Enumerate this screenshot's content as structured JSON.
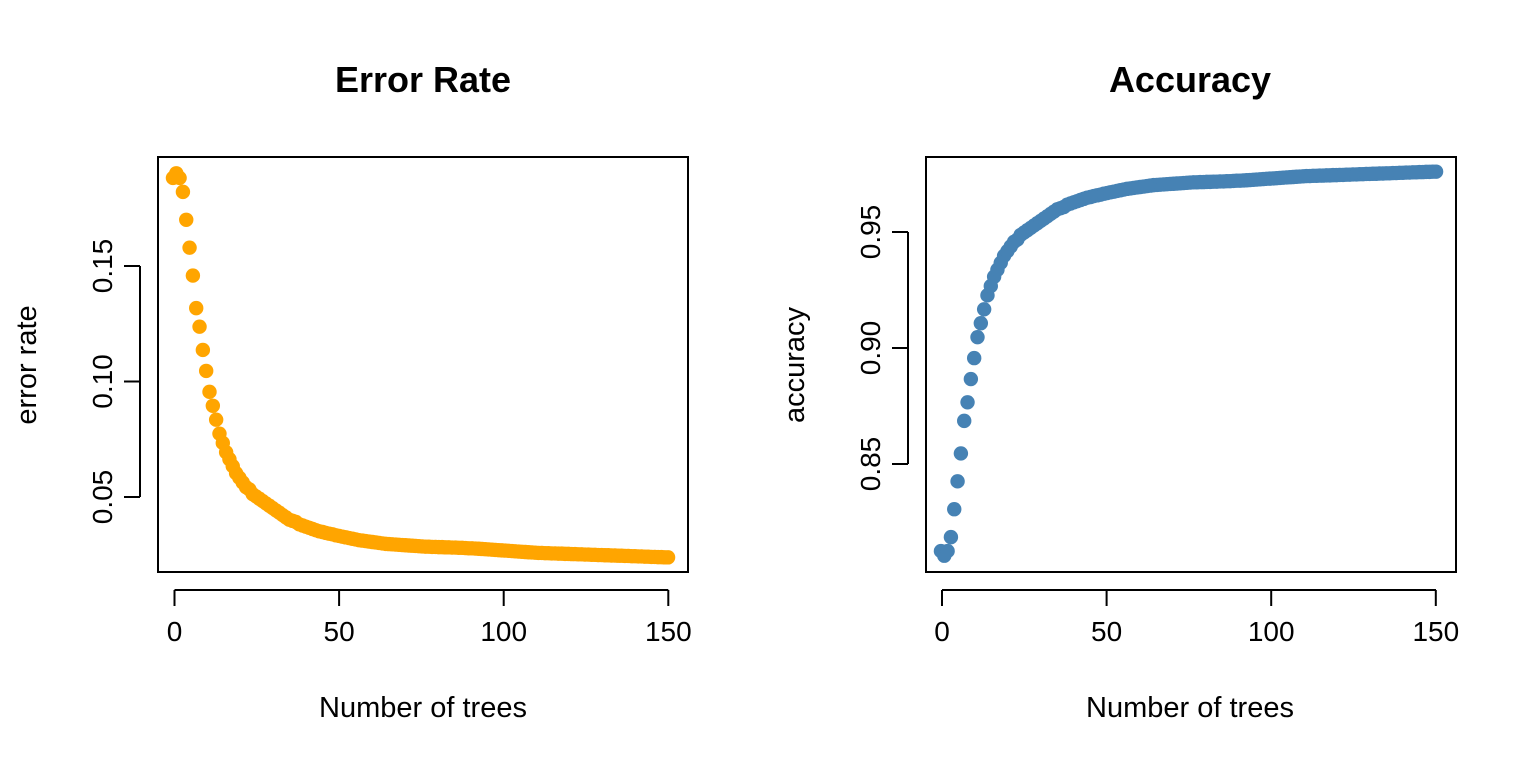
{
  "chart_data": [
    {
      "type": "scatter",
      "title": "Error Rate",
      "xlabel": "Number of trees",
      "ylabel": "error rate",
      "color": "#FFA500",
      "xlim": [
        -3.5,
        156
      ],
      "ylim": [
        0.0185,
        0.197
      ],
      "xticks": [
        0,
        50,
        100,
        150
      ],
      "xtick_labels": [
        "0",
        "50",
        "100",
        "150"
      ],
      "yticks": [
        0.05,
        0.1,
        0.15
      ],
      "ytick_labels": [
        "0.05",
        "0.10",
        "0.15"
      ],
      "grid": false,
      "legend": "none",
      "x_range": [
        1,
        150
      ],
      "y": [
        0.188,
        0.19,
        0.188,
        0.182,
        0.17,
        0.158,
        0.146,
        0.132,
        0.124,
        0.114,
        0.105,
        0.096,
        0.09,
        0.084,
        0.078,
        0.074,
        0.07,
        0.067,
        0.064,
        0.061,
        0.059,
        0.057,
        0.055,
        0.054,
        0.052,
        0.051,
        0.05,
        0.049,
        0.048,
        0.047,
        0.046,
        0.045,
        0.044,
        0.043,
        0.042,
        0.041,
        0.0405,
        0.04,
        0.039,
        0.0385,
        0.038,
        0.0375,
        0.037,
        0.0365,
        0.036,
        0.0357,
        0.0353,
        0.035,
        0.0347,
        0.0343,
        0.034,
        0.0337,
        0.0334,
        0.0331,
        0.0328,
        0.0325,
        0.0322,
        0.032,
        0.0318,
        0.0316,
        0.0314,
        0.0312,
        0.031,
        0.0308,
        0.0306,
        0.0305,
        0.0304,
        0.0303,
        0.0302,
        0.0301,
        0.03,
        0.0299,
        0.0298,
        0.0297,
        0.0296,
        0.0295,
        0.0294,
        0.0294,
        0.0293,
        0.0293,
        0.0292,
        0.0292,
        0.0291,
        0.0291,
        0.029,
        0.029,
        0.0289,
        0.0289,
        0.0288,
        0.0287,
        0.0287,
        0.0286,
        0.0285,
        0.0284,
        0.0283,
        0.0282,
        0.0281,
        0.028,
        0.0279,
        0.0278,
        0.0277,
        0.0276,
        0.0275,
        0.0274,
        0.0273,
        0.0272,
        0.0271,
        0.027,
        0.0269,
        0.0268,
        0.0267,
        0.0267,
        0.0266,
        0.0266,
        0.0265,
        0.0265,
        0.0264,
        0.0264,
        0.0263,
        0.0263,
        0.0262,
        0.0262,
        0.0261,
        0.0261,
        0.026,
        0.026,
        0.0259,
        0.0259,
        0.0258,
        0.0258,
        0.0257,
        0.0257,
        0.0256,
        0.0256,
        0.0255,
        0.0255,
        0.0254,
        0.0254,
        0.0253,
        0.0253,
        0.0252,
        0.0252,
        0.0251,
        0.0251,
        0.025,
        0.025,
        0.0249,
        0.0249,
        0.0248,
        0.0248
      ]
    },
    {
      "type": "scatter",
      "title": "Accuracy",
      "xlabel": "Number of trees",
      "ylabel": "accuracy",
      "color": "#4682B4",
      "xlim": [
        -3.5,
        156
      ],
      "ylim": [
        0.803,
        0.9815
      ],
      "xticks": [
        0,
        50,
        100,
        150
      ],
      "xtick_labels": [
        "0",
        "50",
        "100",
        "150"
      ],
      "yticks": [
        0.85,
        0.9,
        0.95
      ],
      "ytick_labels": [
        "0.85",
        "0.90",
        "0.95"
      ],
      "grid": false,
      "legend": "none",
      "x_range": [
        1,
        150
      ],
      "y": [
        0.812,
        0.81,
        0.812,
        0.818,
        0.83,
        0.842,
        0.854,
        0.868,
        0.876,
        0.886,
        0.895,
        0.904,
        0.91,
        0.916,
        0.922,
        0.926,
        0.93,
        0.933,
        0.936,
        0.939,
        0.941,
        0.943,
        0.945,
        0.946,
        0.948,
        0.949,
        0.95,
        0.951,
        0.952,
        0.953,
        0.954,
        0.955,
        0.956,
        0.957,
        0.958,
        0.959,
        0.9595,
        0.96,
        0.961,
        0.9615,
        0.962,
        0.9625,
        0.963,
        0.9635,
        0.964,
        0.9643,
        0.9647,
        0.965,
        0.9653,
        0.9657,
        0.966,
        0.9663,
        0.9666,
        0.9669,
        0.9672,
        0.9675,
        0.9678,
        0.968,
        0.9682,
        0.9684,
        0.9686,
        0.9688,
        0.969,
        0.9692,
        0.9694,
        0.9695,
        0.9696,
        0.9697,
        0.9698,
        0.9699,
        0.97,
        0.9701,
        0.9702,
        0.9703,
        0.9704,
        0.9705,
        0.9706,
        0.9706,
        0.9707,
        0.9707,
        0.9708,
        0.9708,
        0.9709,
        0.9709,
        0.971,
        0.971,
        0.9711,
        0.9711,
        0.9712,
        0.9713,
        0.9713,
        0.9714,
        0.9715,
        0.9716,
        0.9717,
        0.9718,
        0.9719,
        0.972,
        0.9721,
        0.9722,
        0.9723,
        0.9724,
        0.9725,
        0.9726,
        0.9727,
        0.9728,
        0.9729,
        0.973,
        0.9731,
        0.9732,
        0.9733,
        0.9733,
        0.9734,
        0.9734,
        0.9735,
        0.9735,
        0.9736,
        0.9736,
        0.9737,
        0.9737,
        0.9738,
        0.9738,
        0.9739,
        0.9739,
        0.974,
        0.974,
        0.9741,
        0.9741,
        0.9742,
        0.9742,
        0.9743,
        0.9743,
        0.9744,
        0.9744,
        0.9745,
        0.9745,
        0.9746,
        0.9746,
        0.9747,
        0.9747,
        0.9748,
        0.9748,
        0.9749,
        0.9749,
        0.975,
        0.975,
        0.9751,
        0.9751,
        0.9752,
        0.9752
      ]
    }
  ]
}
